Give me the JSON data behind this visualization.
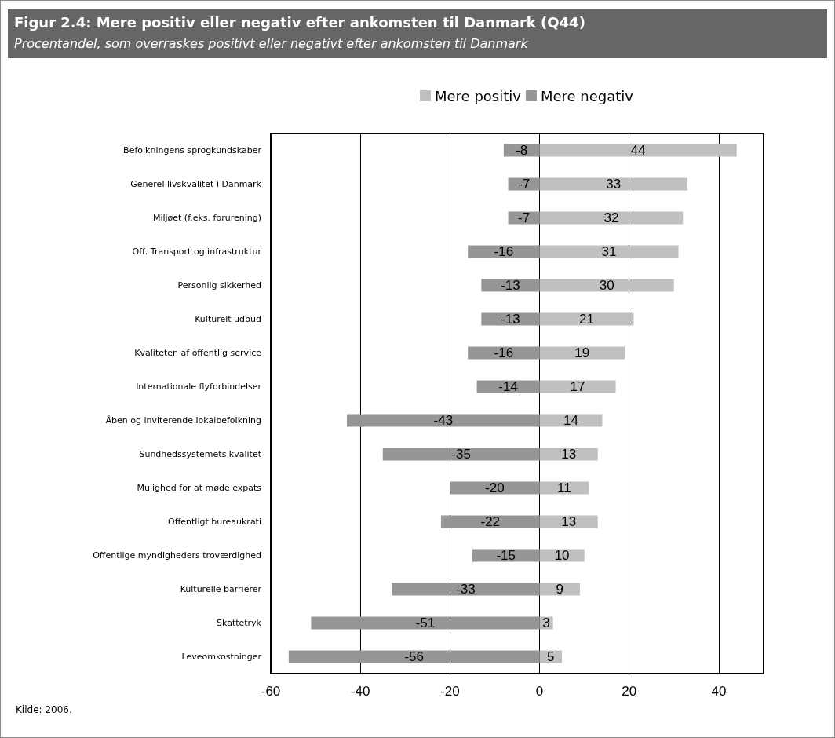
{
  "chart_data": {
    "type": "bar",
    "orientation": "horizontal",
    "stacked": true,
    "title": "Figur 2.4: Mere positiv eller negativ efter ankomsten til Danmark (Q44)",
    "subtitle": "Procentandel, som overraskes positivt eller negativt efter ankomsten til Danmark",
    "categories": [
      "Befolkningens sprogkundskaber",
      "Generel livskvalitet i Danmark",
      "Miljøet (f.eks. forurening)",
      "Off. Transport og infrastruktur",
      "Personlig sikkerhed",
      "Kulturelt udbud",
      "Kvaliteten af offentlig service",
      "Internationale flyforbindelser",
      "Åben og inviterende lokalbefolkning",
      "Sundhedssystemets kvalitet",
      "Mulighed for at møde expats",
      "Offentligt bureaukrati",
      "Offentlige myndigheders troværdighed",
      "Kulturelle barrierer",
      "Skattetryk",
      "Leveomkostninger"
    ],
    "series": [
      {
        "name": "Mere positiv",
        "color": "#c0c0c0",
        "values": [
          44,
          33,
          32,
          31,
          30,
          21,
          19,
          17,
          14,
          13,
          11,
          13,
          10,
          9,
          3,
          5
        ]
      },
      {
        "name": "Mere negativ",
        "color": "#969696",
        "values": [
          -8,
          -7,
          -7,
          -16,
          -13,
          -13,
          -16,
          -14,
          -43,
          -35,
          -20,
          -22,
          -15,
          -33,
          -51,
          -56
        ]
      }
    ],
    "xlim": [
      -60,
      50
    ],
    "xticks": [
      -60,
      -40,
      -20,
      0,
      20,
      40
    ],
    "grid": "x",
    "legend": "top",
    "data_labels": true,
    "annotations": [
      "Kilde: 2006."
    ]
  }
}
